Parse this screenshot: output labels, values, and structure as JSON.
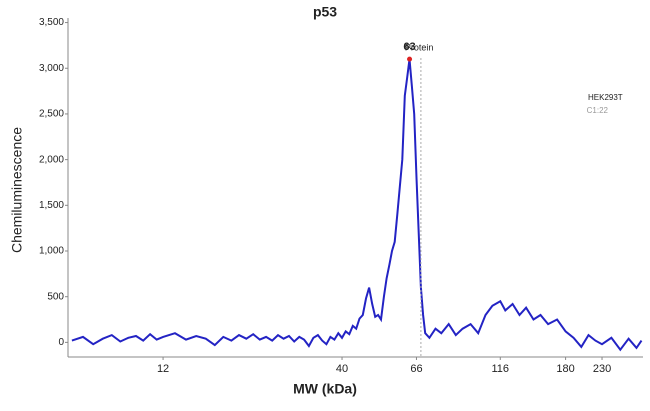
{
  "chart_data": {
    "type": "line",
    "title": "p53",
    "x_label": "MW (kDa)",
    "y_label": "Chemiluminescence",
    "xscale": "log",
    "xlim": [
      6.33,
      303
    ],
    "xticks": [
      12,
      40,
      66,
      116,
      180,
      230
    ],
    "ylim": [
      -160,
      3550
    ],
    "yticks": [
      0,
      500,
      {
        "value": 1000,
        "label": "1,000"
      },
      {
        "value": 1500,
        "label": "1,500"
      },
      {
        "value": 2000,
        "label": "2,000"
      },
      {
        "value": 2500,
        "label": "2,500"
      },
      {
        "value": 3000,
        "label": "3,000"
      },
      {
        "value": 3500,
        "label": "3,500"
      }
    ],
    "x": [
      6.5,
      7,
      7.5,
      8,
      8.5,
      9,
      9.5,
      10,
      10.5,
      11,
      11.5,
      12,
      13,
      14,
      15,
      16,
      17,
      18,
      19,
      20,
      21,
      22,
      23,
      24,
      25,
      26,
      27,
      28,
      29,
      30,
      31,
      32,
      33,
      34,
      35,
      36,
      37,
      38,
      39,
      40,
      41,
      42,
      43,
      44,
      45,
      46,
      47,
      48,
      49,
      50,
      51,
      52,
      53,
      54,
      55,
      56,
      57,
      58,
      59,
      60,
      61,
      62,
      63,
      64,
      65,
      66,
      67,
      68,
      69,
      70,
      72,
      75,
      78,
      82,
      86,
      90,
      95,
      100,
      105,
      110,
      116,
      120,
      126,
      132,
      138,
      145,
      152,
      160,
      170,
      180,
      190,
      200,
      210,
      220,
      230,
      245,
      260,
      275,
      290,
      300
    ],
    "series": [
      {
        "name": "HEK293T",
        "color": "#2323c4",
        "values": [
          20,
          60,
          -20,
          40,
          80,
          10,
          50,
          70,
          20,
          90,
          30,
          60,
          100,
          30,
          70,
          40,
          -30,
          60,
          20,
          80,
          40,
          90,
          30,
          60,
          20,
          80,
          40,
          70,
          10,
          60,
          30,
          -40,
          50,
          80,
          20,
          -20,
          60,
          30,
          100,
          50,
          120,
          90,
          180,
          150,
          260,
          300,
          480,
          600,
          420,
          280,
          300,
          250,
          500,
          700,
          850,
          1000,
          1100,
          1400,
          1700,
          2000,
          2700,
          2900,
          3100,
          2800,
          2500,
          1800,
          1200,
          600,
          300,
          100,
          50,
          150,
          100,
          200,
          80,
          150,
          200,
          100,
          300,
          400,
          450,
          350,
          420,
          300,
          380,
          250,
          300,
          200,
          250,
          120,
          50,
          -50,
          80,
          20,
          -20,
          50,
          -80,
          40,
          -60,
          20
        ]
      }
    ],
    "annotations": [
      {
        "label": "63",
        "x": 63,
        "y": 3100
      },
      {
        "label": "Protein",
        "x": 68
      }
    ],
    "sample_labels": [
      "HEK293T",
      "C1:22"
    ]
  }
}
